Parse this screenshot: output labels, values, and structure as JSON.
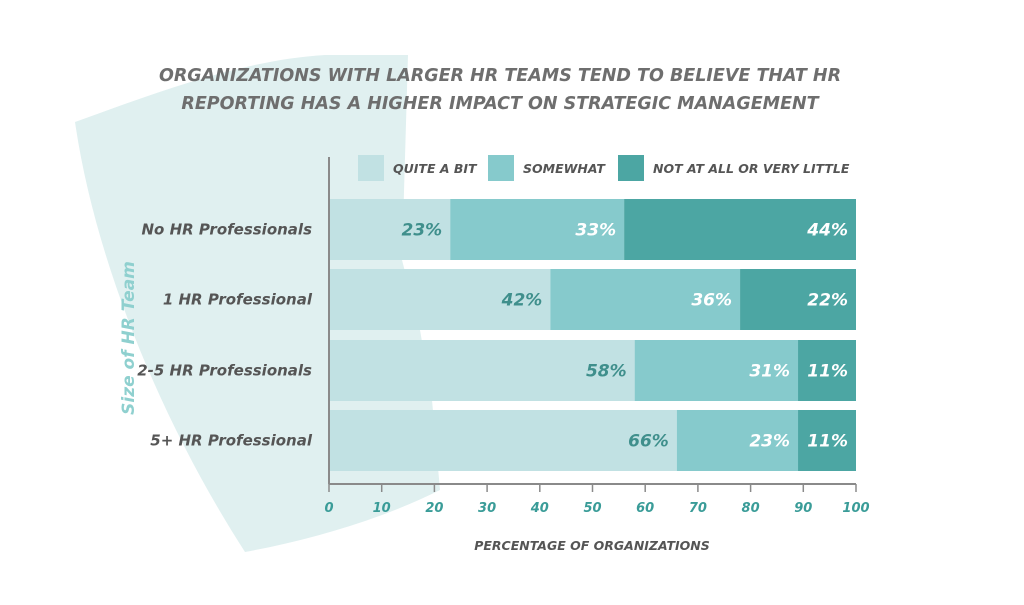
{
  "chart_data": {
    "type": "bar",
    "orientation": "horizontal",
    "stacked": true,
    "title_lines": [
      "ORGANIZATIONS WITH LARGER HR TEAMS TEND TO BELIEVE THAT HR",
      "REPORTING HAS A HIGHER IMPACT ON STRATEGIC MANAGEMENT"
    ],
    "xlabel": "PERCENTAGE OF ORGANIZATIONS",
    "ylabel": "Size of HR Team",
    "xlim": [
      0,
      100
    ],
    "xticks": [
      0,
      10,
      20,
      30,
      40,
      50,
      60,
      70,
      80,
      90,
      100
    ],
    "legend_position": "top",
    "categories": [
      "No HR Professionals",
      "1 HR Professional",
      "2-5 HR Professionals",
      "5+ HR Professional"
    ],
    "series": [
      {
        "name": "QUITE A BIT",
        "color": "#c1e1e3",
        "label_color": "#3f8f8c",
        "values": [
          23,
          42,
          58,
          66
        ],
        "labels": [
          "23%",
          "42%",
          "58%",
          "66%"
        ]
      },
      {
        "name": "SOMEWHAT",
        "color": "#86cacc",
        "label_color": "#ffffff",
        "values": [
          33,
          36,
          31,
          23
        ],
        "labels": [
          "33%",
          "36%",
          "31%",
          "23%"
        ]
      },
      {
        "name": "NOT AT ALL OR VERY LITTLE",
        "color": "#4ca6a3",
        "label_color": "#ffffff",
        "values": [
          44,
          22,
          11,
          11
        ],
        "labels": [
          "44%",
          "22%",
          "11%",
          "11%"
        ]
      }
    ]
  },
  "colors": {
    "background_shape": "#e0f0f0",
    "title": "#6e6e6e",
    "axis": "#8a8a8a",
    "tick_text": "#3a9c98",
    "ylabel_text": "#8fd0cf"
  }
}
